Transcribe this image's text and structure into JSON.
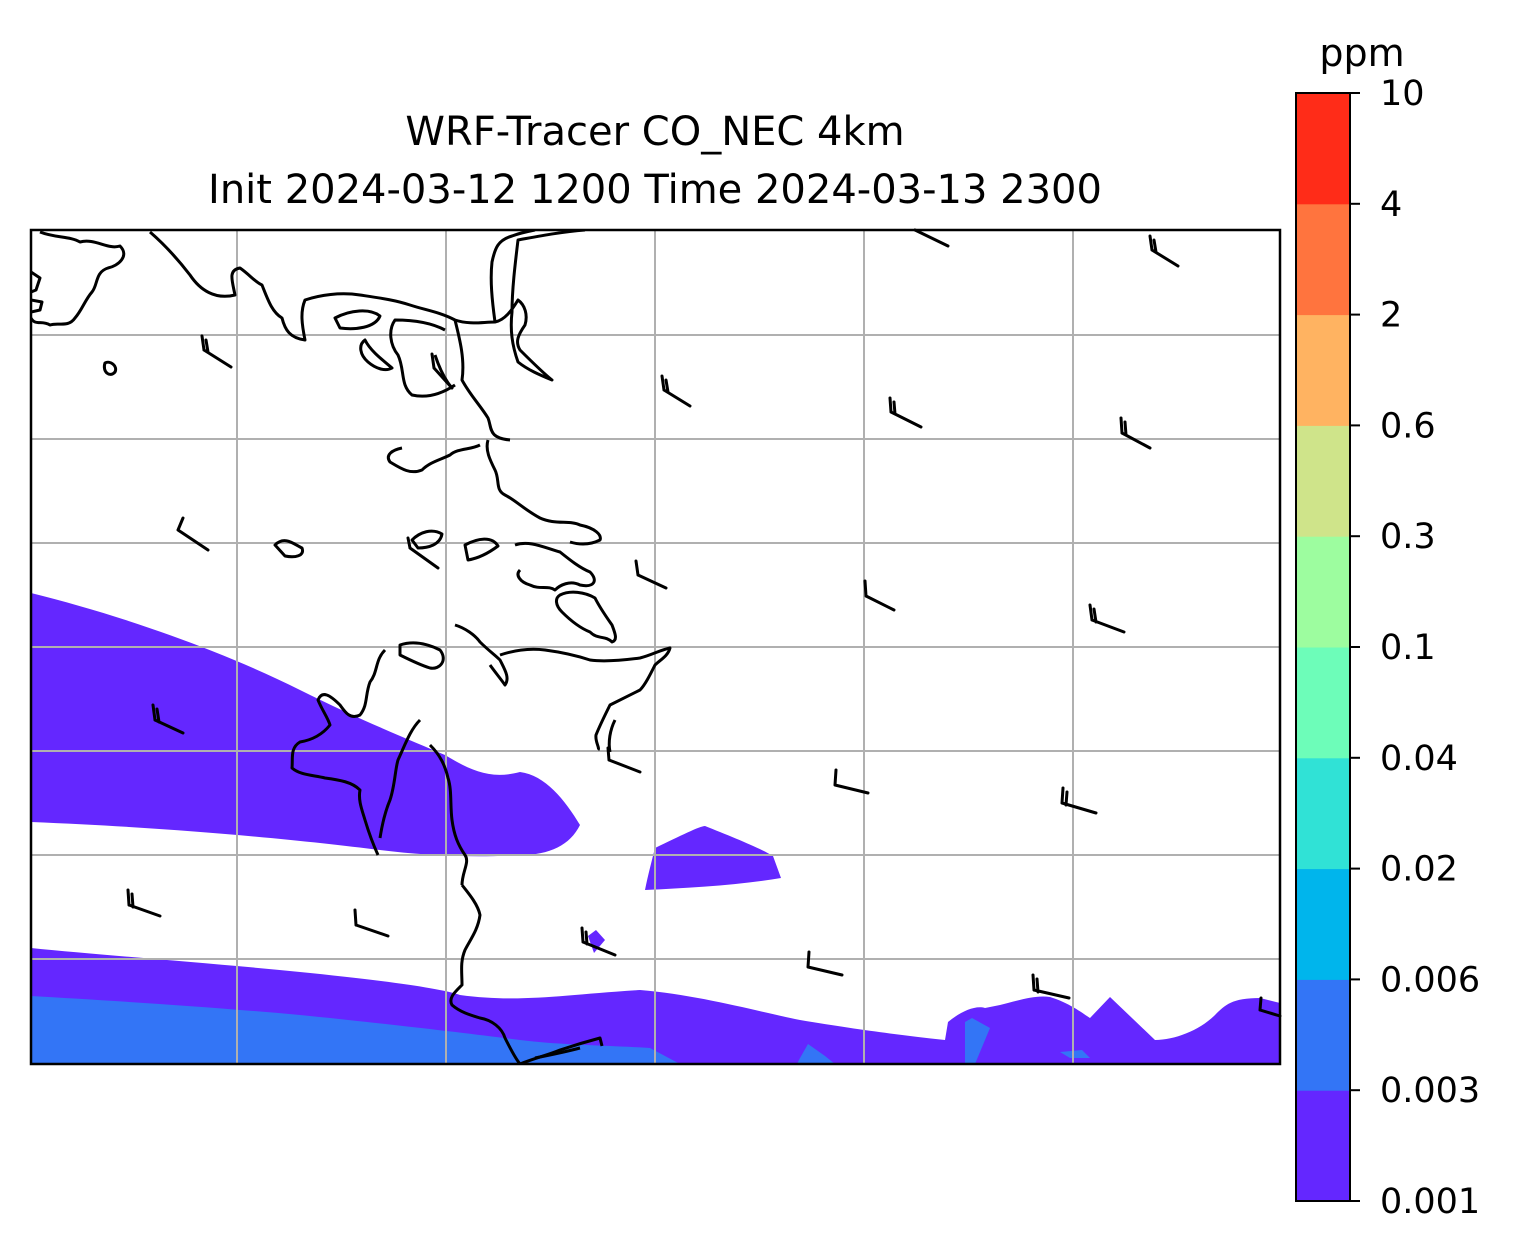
{
  "title": {
    "line1": "WRF-Tracer CO_NEC 4km",
    "line2": "Init 2024-03-12 1200 Time 2024-03-13 2300"
  },
  "colorbar": {
    "unit": "ppm",
    "levels": [
      "0.001",
      "0.003",
      "0.006",
      "0.02",
      "0.04",
      "0.1",
      "0.3",
      "0.6",
      "2",
      "4",
      "10"
    ],
    "colors": [
      "#6427ff",
      "#3375f6",
      "#00b5ec",
      "#30e2d6",
      "#6dfdb9",
      "#9dfd9f",
      "#cfe48a",
      "#ffb361",
      "#ff743e",
      "#ff2c18"
    ]
  },
  "map": {
    "gridlines": true,
    "coastline_color": "#000000",
    "grid_color": "#b0b0b0"
  }
}
